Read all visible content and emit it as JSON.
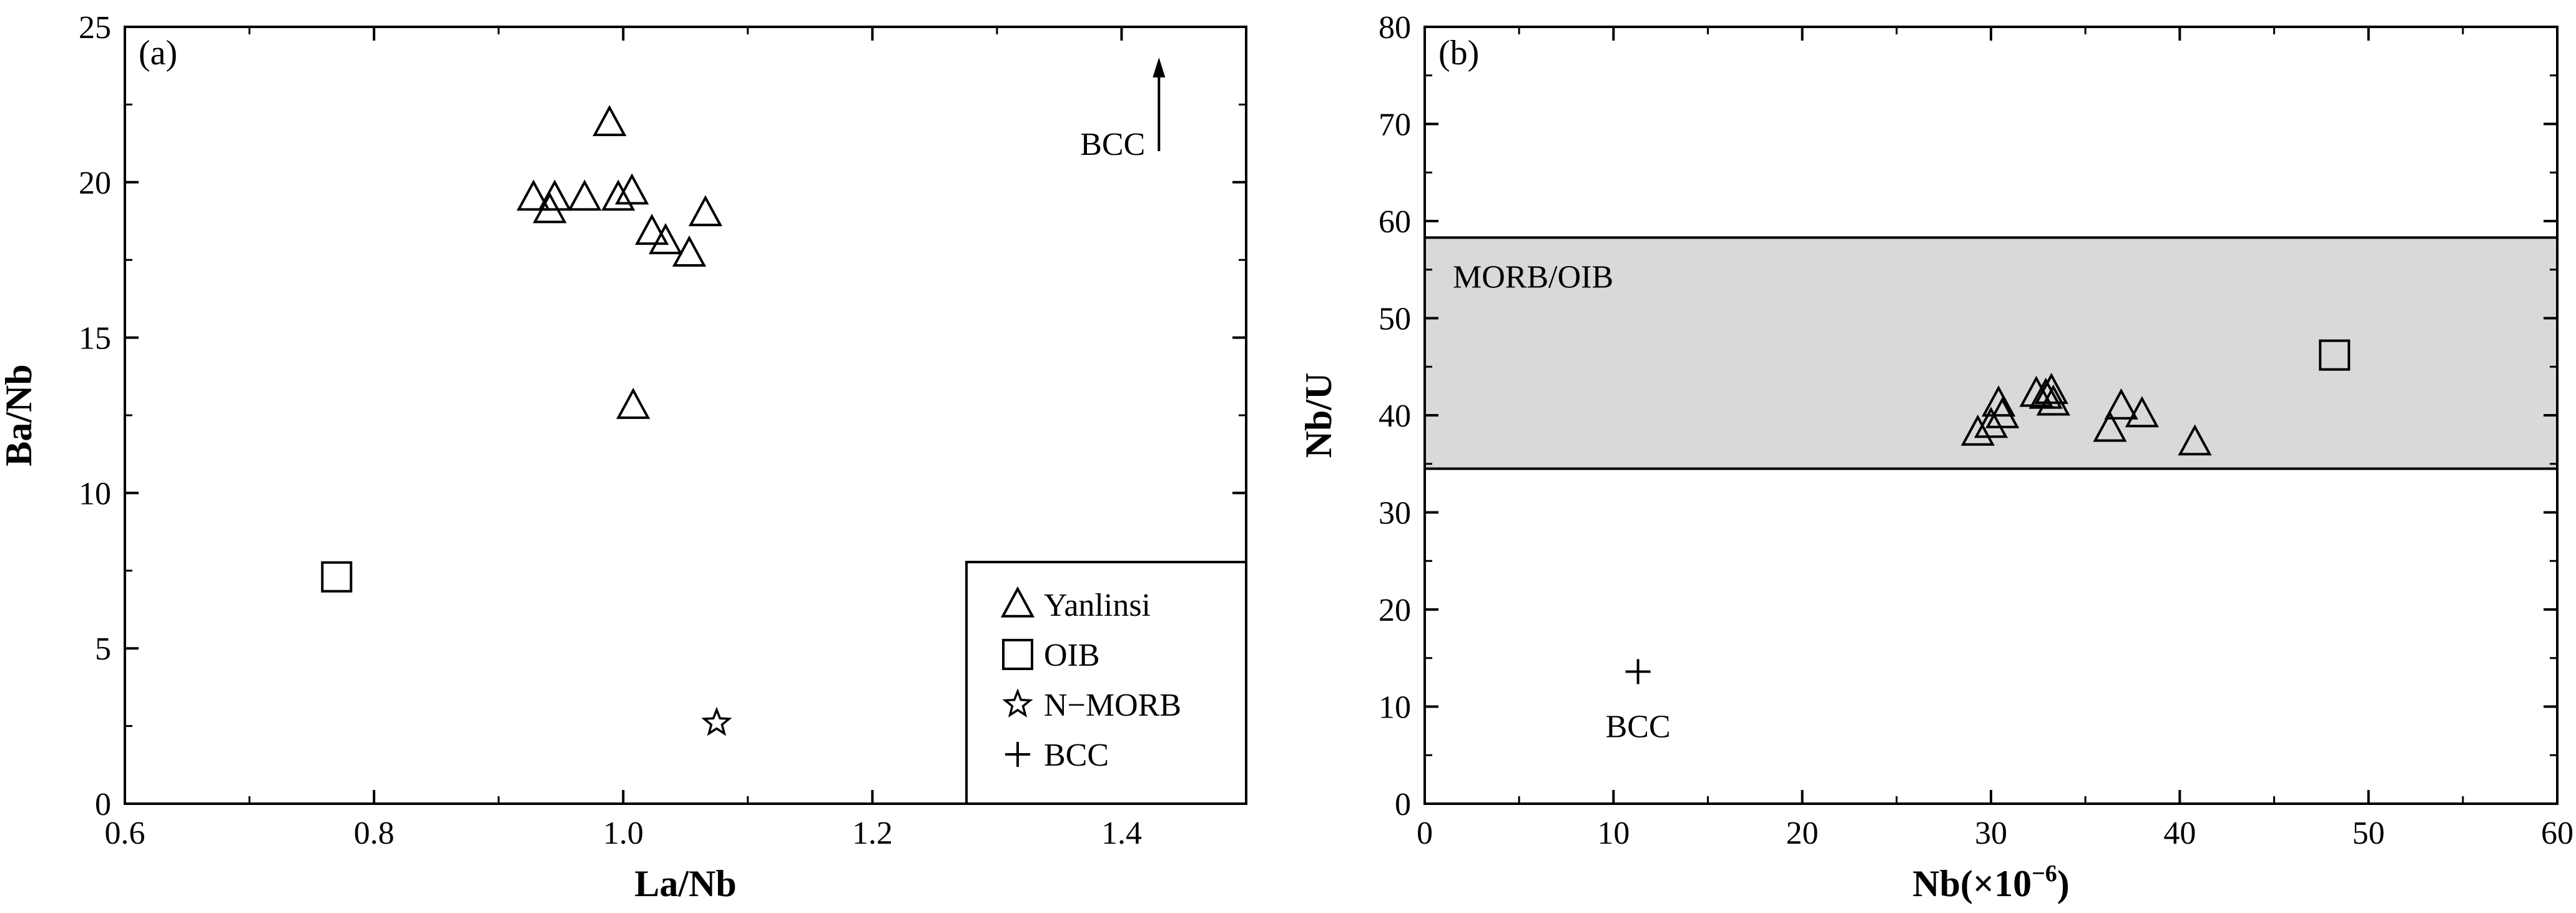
{
  "chart_data": [
    {
      "panel_label": "(a)",
      "type": "scatter",
      "xlabel": "La/Nb",
      "ylabel": "Ba/Nb",
      "xlim": [
        0.6,
        1.5
      ],
      "ylim": [
        0,
        25
      ],
      "xticks": [
        0.6,
        0.8,
        1.0,
        1.2,
        1.4
      ],
      "xtick_labels": [
        "0.6",
        "0.8",
        "1.0",
        "1.2",
        "1.4"
      ],
      "yticks": [
        0,
        5,
        10,
        15,
        20,
        25
      ],
      "ytick_labels": [
        "0",
        "5",
        "10",
        "15",
        "20",
        "25"
      ],
      "grid": false,
      "legend_position": "bottom-right",
      "series": [
        {
          "name": "Yanlinsi",
          "marker": "triangle",
          "points": [
            [
              0.928,
              19.5
            ],
            [
              0.941,
              19.1
            ],
            [
              0.945,
              19.5
            ],
            [
              0.969,
              19.5
            ],
            [
              0.989,
              21.9
            ],
            [
              0.996,
              19.5
            ],
            [
              1.007,
              19.7
            ],
            [
              1.008,
              12.8
            ],
            [
              1.023,
              18.4
            ],
            [
              1.034,
              18.1
            ],
            [
              1.053,
              17.7
            ],
            [
              1.066,
              19.0
            ]
          ]
        },
        {
          "name": "OIB",
          "marker": "square",
          "points": [
            [
              0.77,
              7.3
            ]
          ]
        },
        {
          "name": "N-MORB",
          "marker": "star",
          "points": [
            [
              1.075,
              2.6
            ]
          ]
        }
      ],
      "annotations": [
        {
          "text": "BCC",
          "note": "arrow pointing up (off scale)",
          "x": 1.43,
          "y": 21.0
        }
      ],
      "legend_entries": [
        {
          "label": "Yanlinsi",
          "marker": "triangle"
        },
        {
          "label": "OIB",
          "marker": "square"
        },
        {
          "label": "N−MORB",
          "marker": "star"
        },
        {
          "label": "BCC",
          "marker": "plus"
        }
      ]
    },
    {
      "panel_label": "(b)",
      "type": "scatter",
      "xlabel": "Nb(×10",
      "xlabel_sup": "−6",
      "xlabel_end": ")",
      "ylabel": "Nb/U",
      "xlim": [
        0,
        60
      ],
      "ylim": [
        0,
        80
      ],
      "xticks": [
        0,
        10,
        20,
        30,
        40,
        50,
        60
      ],
      "xtick_labels": [
        "0",
        "10",
        "20",
        "30",
        "40",
        "50",
        "60"
      ],
      "yticks": [
        0,
        10,
        20,
        30,
        40,
        50,
        60,
        70,
        80
      ],
      "ytick_labels": [
        "0",
        "10",
        "20",
        "30",
        "40",
        "50",
        "60",
        "70",
        "80"
      ],
      "grid": false,
      "shaded_band": {
        "label": "MORB/OIB",
        "y_range": [
          34.5,
          58.3
        ],
        "color": "#d9d9d9"
      },
      "series": [
        {
          "name": "Yanlinsi",
          "marker": "triangle",
          "points": [
            [
              29.3,
              38.2
            ],
            [
              30.0,
              39.0
            ],
            [
              30.4,
              41.2
            ],
            [
              30.6,
              40.0
            ],
            [
              32.4,
              42.2
            ],
            [
              32.9,
              42.0
            ],
            [
              33.2,
              42.5
            ],
            [
              33.3,
              41.3
            ],
            [
              36.3,
              38.6
            ],
            [
              36.9,
              40.9
            ],
            [
              38.0,
              40.1
            ],
            [
              40.8,
              37.2
            ]
          ]
        },
        {
          "name": "OIB",
          "marker": "square",
          "points": [
            [
              48.2,
              46.2
            ]
          ]
        },
        {
          "name": "BCC",
          "marker": "plus",
          "points": [
            [
              11.3,
              13.6
            ]
          ]
        }
      ],
      "annotations": [
        {
          "text": "BCC",
          "x": 11.3,
          "y": 8.0
        }
      ]
    }
  ]
}
